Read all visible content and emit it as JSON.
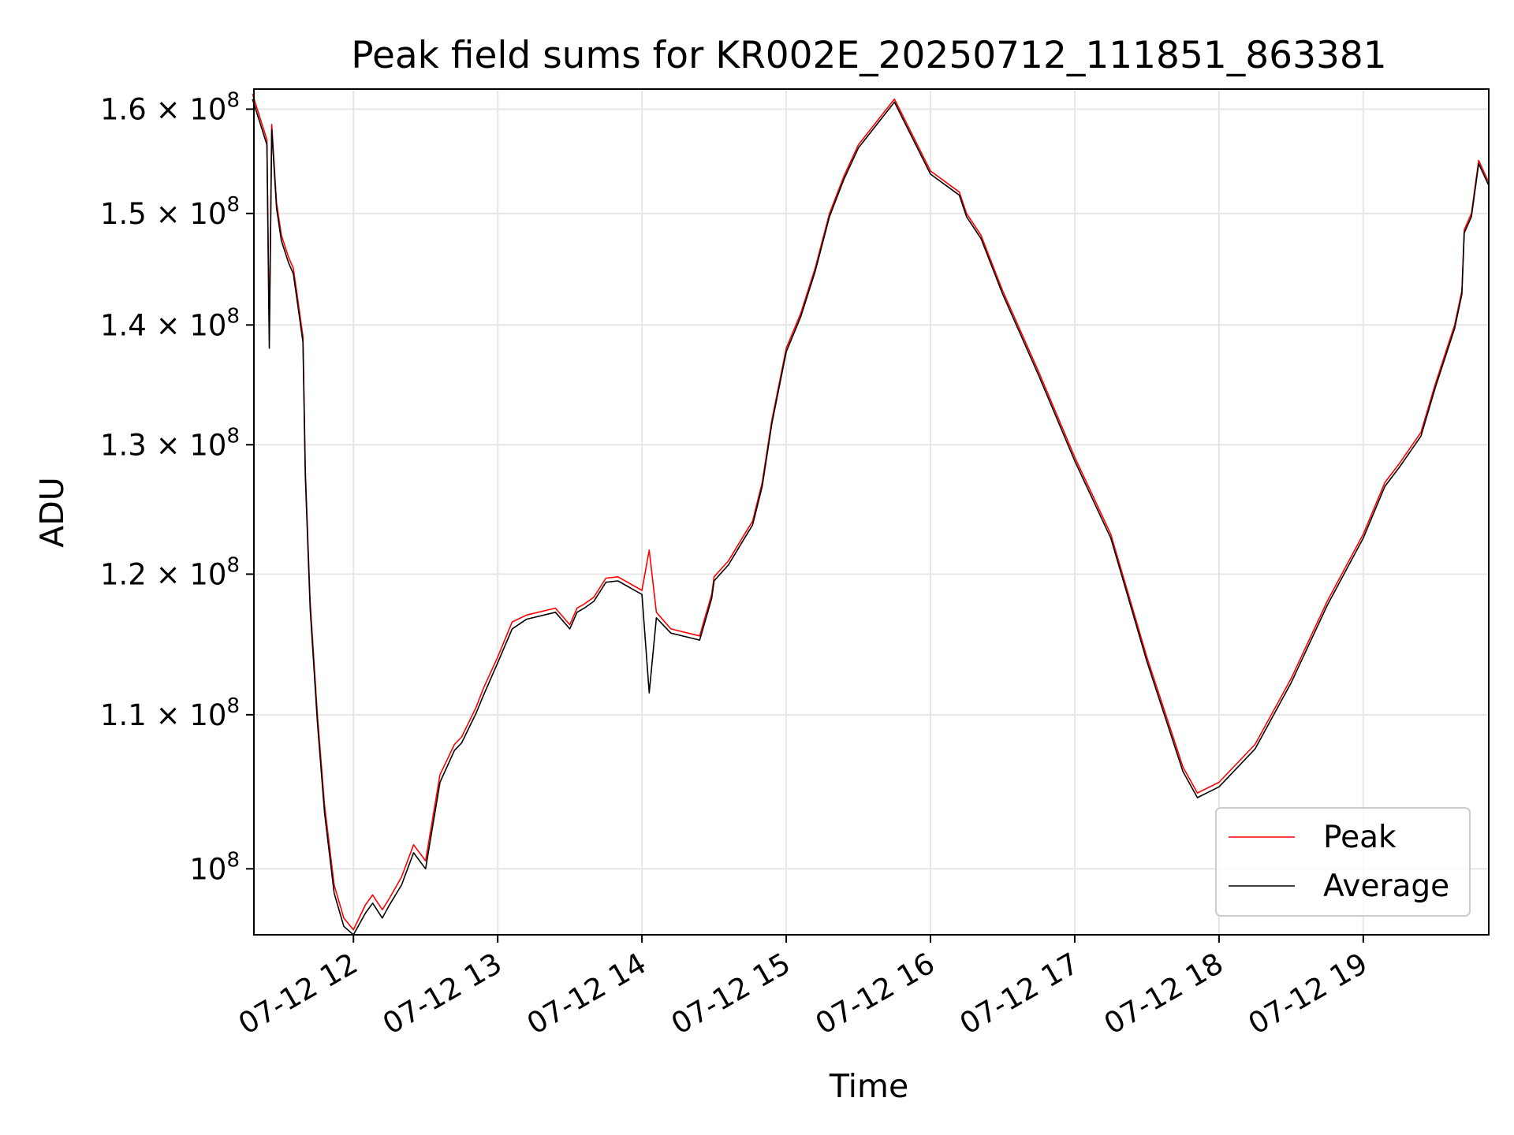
{
  "chart_data": {
    "type": "line",
    "title": "Peak field sums for KR002E_20250712_111851_863381",
    "xlabel": "Time",
    "ylabel": "ADU",
    "x_axis": {
      "scale": "time",
      "date_prefix": "2025-07-12",
      "tick_labels": [
        "07-12 12",
        "07-12 13",
        "07-12 14",
        "07-12 15",
        "07-12 16",
        "07-12 17",
        "07-12 18",
        "07-12 19"
      ],
      "tick_hours": [
        12,
        13,
        14,
        15,
        16,
        17,
        18,
        19
      ],
      "range_hours": [
        11.31,
        19.87
      ],
      "tick_rotation": "30 degrees"
    },
    "y_axis": {
      "scale": "log",
      "range": [
        96000000,
        162000000
      ],
      "ticks": [
        {
          "value": 100000000,
          "mantissa": "",
          "exp": "8"
        },
        {
          "value": 110000000,
          "mantissa": "1.1 × ",
          "exp": "8"
        },
        {
          "value": 120000000,
          "mantissa": "1.2 × ",
          "exp": "8"
        },
        {
          "value": 130000000,
          "mantissa": "1.3 × ",
          "exp": "8"
        },
        {
          "value": 140000000,
          "mantissa": "1.4 × ",
          "exp": "8"
        },
        {
          "value": 150000000,
          "mantissa": "1.5 × ",
          "exp": "8"
        },
        {
          "value": 160000000,
          "mantissa": "1.6 × ",
          "exp": "8"
        }
      ]
    },
    "grid": true,
    "legend_position": "bottom-right",
    "series": [
      {
        "name": "Peak",
        "color": "#ff0000"
      },
      {
        "name": "Average",
        "color": "#000000"
      }
    ],
    "x": [
      "2025-07-12 11:18",
      "2025-07-12 11:24",
      "2025-07-12 11:25",
      "2025-07-12 11:26",
      "2025-07-12 11:28",
      "2025-07-12 11:30",
      "2025-07-12 11:33",
      "2025-07-12 11:35",
      "2025-07-12 11:37",
      "2025-07-12 11:39",
      "2025-07-12 11:40",
      "2025-07-12 11:42",
      "2025-07-12 11:45",
      "2025-07-12 11:48",
      "2025-07-12 11:52",
      "2025-07-12 11:56",
      "2025-07-12 12:00",
      "2025-07-12 12:05",
      "2025-07-12 12:08",
      "2025-07-12 12:12",
      "2025-07-12 12:15",
      "2025-07-12 12:20",
      "2025-07-12 12:25",
      "2025-07-12 12:30",
      "2025-07-12 12:36",
      "2025-07-12 12:42",
      "2025-07-12 12:45",
      "2025-07-12 12:48",
      "2025-07-12 12:51",
      "2025-07-12 12:54",
      "2025-07-12 13:00",
      "2025-07-12 13:06",
      "2025-07-12 13:12",
      "2025-07-12 13:24",
      "2025-07-12 13:30",
      "2025-07-12 13:33",
      "2025-07-12 13:36",
      "2025-07-12 13:40",
      "2025-07-12 13:45",
      "2025-07-12 13:50",
      "2025-07-12 14:00",
      "2025-07-12 14:03",
      "2025-07-12 14:06",
      "2025-07-12 14:12",
      "2025-07-12 14:24",
      "2025-07-12 14:29",
      "2025-07-12 14:30",
      "2025-07-12 14:36",
      "2025-07-12 14:42",
      "2025-07-12 14:46",
      "2025-07-12 14:50",
      "2025-07-12 14:54",
      "2025-07-12 15:00",
      "2025-07-12 15:06",
      "2025-07-12 15:12",
      "2025-07-12 15:18",
      "2025-07-12 15:24",
      "2025-07-12 15:30",
      "2025-07-12 15:45",
      "2025-07-12 16:00",
      "2025-07-12 16:12",
      "2025-07-12 16:15",
      "2025-07-12 16:21",
      "2025-07-12 16:30",
      "2025-07-12 16:45",
      "2025-07-12 17:00",
      "2025-07-12 17:15",
      "2025-07-12 17:30",
      "2025-07-12 17:45",
      "2025-07-12 17:51",
      "2025-07-12 18:00",
      "2025-07-12 18:15",
      "2025-07-12 18:30",
      "2025-07-12 18:45",
      "2025-07-12 19:00",
      "2025-07-12 19:09",
      "2025-07-12 19:15",
      "2025-07-12 19:24",
      "2025-07-12 19:30",
      "2025-07-12 19:38",
      "2025-07-12 19:41",
      "2025-07-12 19:42",
      "2025-07-12 19:45",
      "2025-07-12 19:48",
      "2025-07-12 19:52"
    ],
    "series_values": {
      "Peak": [
        161500000,
        157000000,
        139000000,
        158500000,
        151000000,
        148000000,
        146000000,
        145000000,
        142000000,
        139000000,
        128000000,
        118000000,
        110000000,
        104000000,
        99000000,
        97000000,
        96300000,
        97800000,
        98400000,
        97500000,
        98200000,
        99500000,
        101500000,
        100500000,
        106000000,
        108000000,
        108500000,
        109500000,
        110500000,
        111800000,
        114000000,
        116500000,
        117000000,
        117500000,
        116300000,
        117500000,
        117800000,
        118300000,
        119700000,
        119800000,
        118800000,
        121800000,
        117200000,
        116000000,
        115500000,
        118500000,
        119800000,
        121000000,
        122800000,
        124000000,
        127000000,
        132000000,
        138000000,
        141000000,
        145000000,
        150000000,
        153500000,
        156500000,
        161000000,
        154000000,
        152000000,
        150000000,
        148000000,
        143000000,
        136000000,
        129000000,
        123000000,
        114000000,
        106500000,
        104800000,
        105500000,
        108000000,
        112500000,
        118000000,
        123000000,
        127000000,
        128500000,
        131000000,
        135000000,
        140000000,
        143000000,
        148500000,
        150000000,
        155000000,
        153000000
      ]
    },
    "average_values": [
      161000000,
      156500000,
      138000000,
      158000000,
      150500000,
      147500000,
      145500000,
      144500000,
      141500000,
      138500000,
      127500000,
      117500000,
      109500000,
      103500000,
      98500000,
      96500000,
      96000000,
      97300000,
      97900000,
      97000000,
      97800000,
      99000000,
      101000000,
      100000000,
      105500000,
      107600000,
      108100000,
      109100000,
      110100000,
      111300000,
      113600000,
      116000000,
      116700000,
      117200000,
      116000000,
      117200000,
      117500000,
      118000000,
      119400000,
      119500000,
      118500000,
      111500000,
      116800000,
      115700000,
      115200000,
      118200000,
      119500000,
      120700000,
      122500000,
      123700000,
      126700000,
      131700000,
      137700000,
      140700000,
      144700000,
      149700000,
      153200000,
      156200000,
      160700000,
      153700000,
      151700000,
      149700000,
      147700000,
      142700000,
      135700000,
      128700000,
      122700000,
      113700000,
      106200000,
      104500000,
      105200000,
      107700000,
      112200000,
      117700000,
      122700000,
      126700000,
      128200000,
      130700000,
      134700000,
      139700000,
      142700000,
      148200000,
      149700000,
      154700000,
      152700000
    ]
  }
}
